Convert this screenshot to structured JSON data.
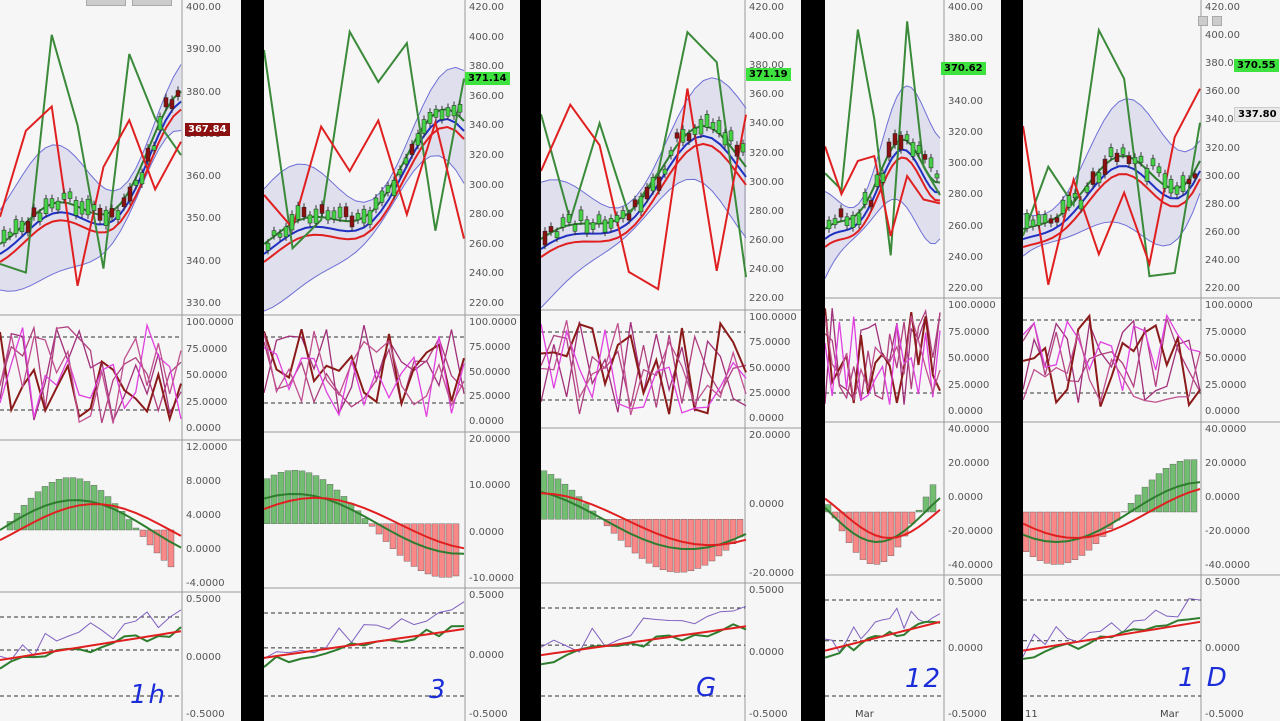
{
  "panels": [
    {
      "timeframe": "1h",
      "price": "367.84",
      "price_axis": [
        "400.00",
        "390.00",
        "380.00",
        "370.00",
        "360.00",
        "350.00",
        "340.00",
        "330.00"
      ],
      "stoch_axis": [
        "100.0000",
        "75.0000",
        "50.0000",
        "25.0000",
        "0.0000"
      ],
      "macd_axis": [
        "12.0000",
        "8.0000",
        "4.0000",
        "0.0000",
        "-4.0000"
      ],
      "osc_axis": [
        "0.5000",
        "0.0000",
        "-0.5000"
      ],
      "x_labels": []
    },
    {
      "timeframe": "3",
      "price": "371.14",
      "price_axis": [
        "420.00",
        "400.00",
        "380.00",
        "360.00",
        "340.00",
        "320.00",
        "300.00",
        "280.00",
        "260.00",
        "240.00",
        "220.00"
      ],
      "stoch_axis": [
        "100.0000",
        "75.0000",
        "50.0000",
        "25.0000",
        "0.0000"
      ],
      "macd_axis": [
        "20.0000",
        "10.0000",
        "0.0000",
        "-10.0000"
      ],
      "osc_axis": [
        "0.5000",
        "0.0000",
        "-0.5000"
      ],
      "x_labels": []
    },
    {
      "timeframe": "G",
      "price": "371.19",
      "price_axis": [
        "420.00",
        "400.00",
        "380.00",
        "360.00",
        "340.00",
        "320.00",
        "300.00",
        "280.00",
        "260.00",
        "240.00",
        "220.00"
      ],
      "stoch_axis": [
        "100.0000",
        "75.0000",
        "50.0000",
        "25.0000",
        "0.0000"
      ],
      "macd_axis": [
        "20.0000",
        "0.0000",
        "-20.0000"
      ],
      "osc_axis": [
        "0.5000",
        "0.0000",
        "-0.5000"
      ],
      "x_labels": []
    },
    {
      "timeframe": "12",
      "price": "370.62",
      "price_axis": [
        "400.00",
        "380.00",
        "360.00",
        "340.00",
        "320.00",
        "300.00",
        "280.00",
        "260.00",
        "240.00",
        "220.00"
      ],
      "stoch_axis": [
        "100.0000",
        "75.0000",
        "50.0000",
        "25.0000",
        "0.0000"
      ],
      "macd_axis": [
        "40.0000",
        "20.0000",
        "0.0000",
        "-20.0000",
        "-40.0000"
      ],
      "osc_axis": [
        "0.5000",
        "0.0000",
        "-0.5000"
      ],
      "x_labels": [
        "Mar"
      ]
    },
    {
      "timeframe": "1 D",
      "price": "370.55",
      "price2": "337.80",
      "price_axis": [
        "420.00",
        "400.00",
        "380.00",
        "360.00",
        "340.00",
        "320.00",
        "300.00",
        "280.00",
        "260.00",
        "240.00",
        "220.00"
      ],
      "stoch_axis": [
        "100.0000",
        "75.0000",
        "50.0000",
        "25.0000",
        "0.0000"
      ],
      "macd_axis": [
        "40.0000",
        "20.0000",
        "0.0000",
        "-20.0000",
        "-40.0000"
      ],
      "osc_axis": [
        "0.5000",
        "0.0000",
        "-0.5000"
      ],
      "x_labels": [
        "11",
        "Mar"
      ]
    }
  ]
}
